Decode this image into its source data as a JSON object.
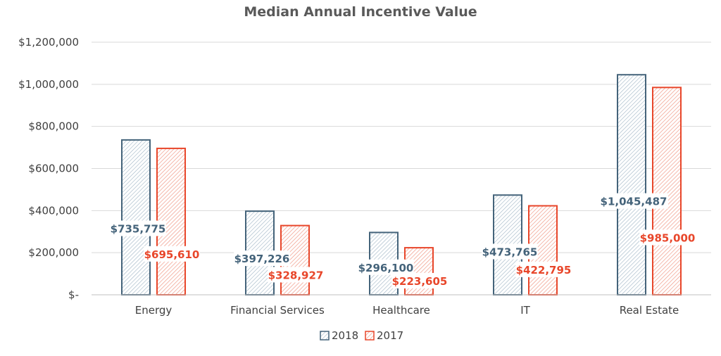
{
  "chart_data": {
    "type": "bar",
    "title": "Median Annual Incentive Value",
    "categories": [
      "Energy",
      "Financial Services",
      "Healthcare",
      "IT",
      "Real Estate"
    ],
    "series": [
      {
        "name": "2018",
        "values": [
          735775,
          397226,
          296100,
          473765,
          1045487
        ],
        "labels": [
          "$735,775",
          "$397,226",
          "$296,100",
          "$473,765",
          "$1,045,487"
        ],
        "color": "#44637a",
        "pattern": "diagonal-hatch-light"
      },
      {
        "name": "2017",
        "values": [
          695610,
          328927,
          223605,
          422795,
          985000
        ],
        "labels": [
          "$695,610",
          "$328,927",
          "$223,605",
          "$422,795",
          "$985,000"
        ],
        "color": "#e8462a",
        "pattern": "diagonal-hatch-dense"
      }
    ],
    "ylim": [
      0,
      1200000
    ],
    "yticks": [
      0,
      200000,
      400000,
      600000,
      800000,
      1000000,
      1200000
    ],
    "ytick_labels": [
      "$-",
      "$200,000",
      "$400,000",
      "$600,000",
      "$800,000",
      "$1,000,000",
      "$1,200,000"
    ],
    "xlabel": "",
    "ylabel": "",
    "grid": true,
    "legend_position": "bottom"
  }
}
